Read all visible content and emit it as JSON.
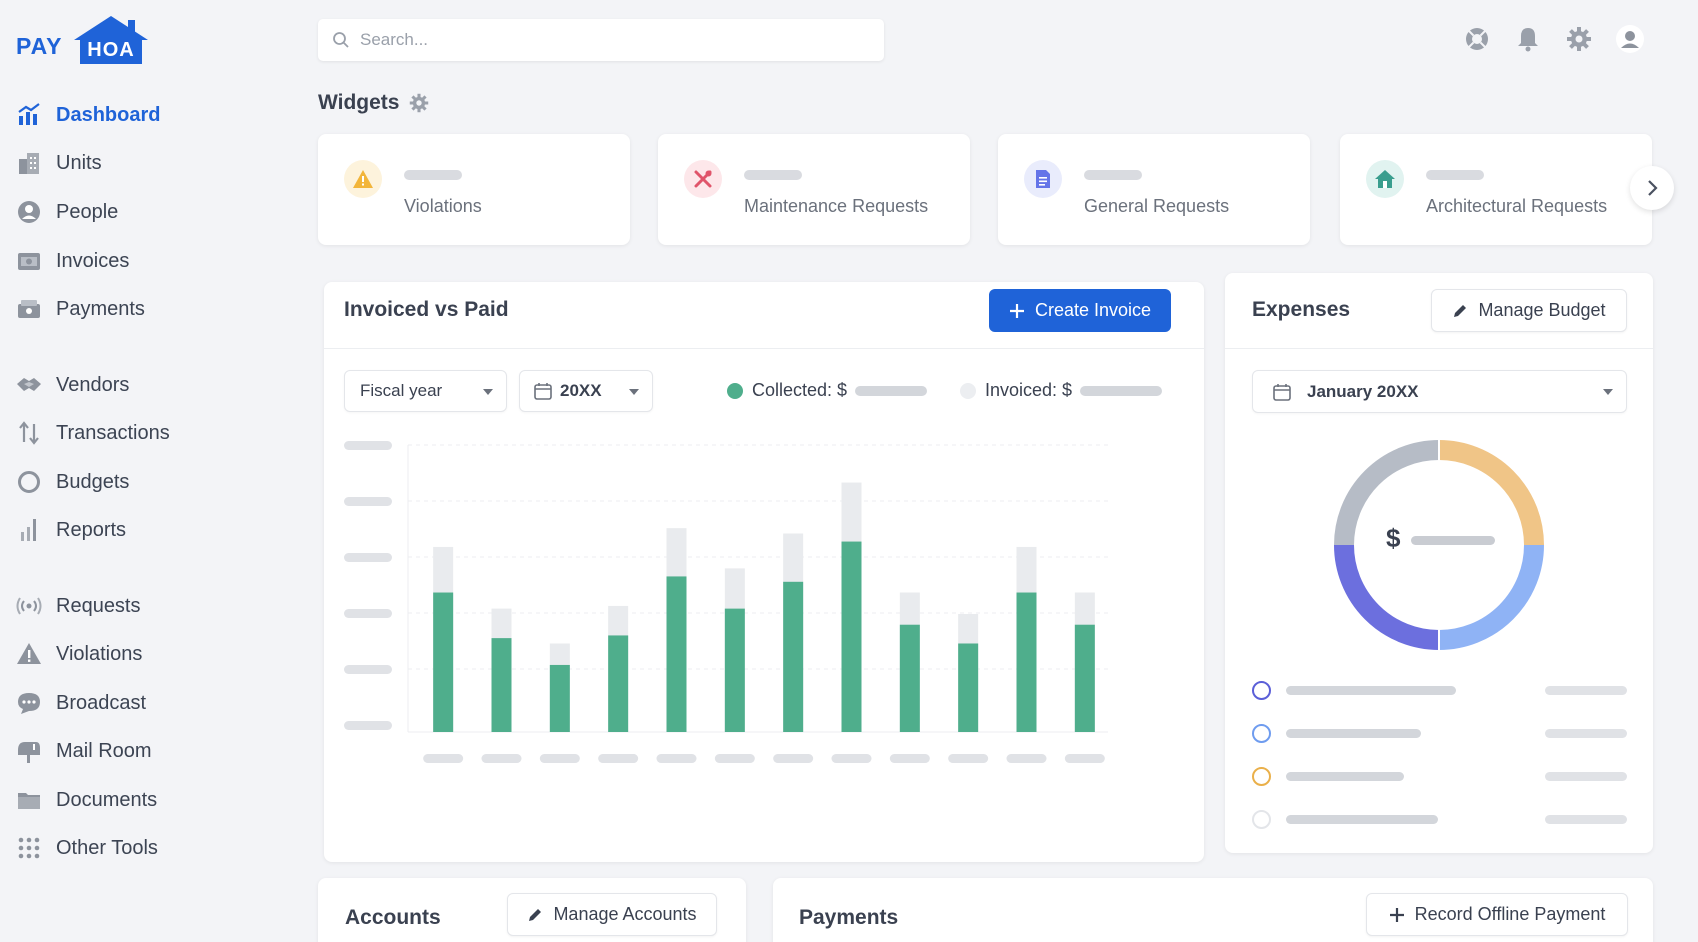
{
  "brand": {
    "pay": "PAY",
    "hoa": "HOA",
    "primary_color": "#1f63d8"
  },
  "sidebar": {
    "items": [
      {
        "label": "Dashboard",
        "icon": "dashboard-icon",
        "active": true
      },
      {
        "label": "Units",
        "icon": "building-icon"
      },
      {
        "label": "People",
        "icon": "person-icon"
      },
      {
        "label": "Invoices",
        "icon": "invoice-icon"
      },
      {
        "label": "Payments",
        "icon": "payments-icon"
      },
      {
        "label": "Vendors",
        "icon": "handshake-icon"
      },
      {
        "label": "Transactions",
        "icon": "transfer-arrows-icon"
      },
      {
        "label": "Budgets",
        "icon": "budget-ring-icon"
      },
      {
        "label": "Reports",
        "icon": "bar-chart-icon"
      },
      {
        "label": "Requests",
        "icon": "broadcast-signal-icon"
      },
      {
        "label": "Violations",
        "icon": "warning-icon"
      },
      {
        "label": "Broadcast",
        "icon": "chat-bubble-icon"
      },
      {
        "label": "Mail Room",
        "icon": "mailbox-icon"
      },
      {
        "label": "Documents",
        "icon": "folder-icon"
      },
      {
        "label": "Other Tools",
        "icon": "grid-dots-icon"
      }
    ]
  },
  "search": {
    "placeholder": "Search..."
  },
  "top_icons": [
    "help-lifebuoy-icon",
    "bell-icon",
    "gear-icon",
    "user-avatar-icon"
  ],
  "widgets": {
    "title": "Widgets",
    "cards": [
      {
        "label": "Violations",
        "icon": "warning-icon",
        "icon_color": "#f2b53a",
        "icon_bg": "#fdf3dc"
      },
      {
        "label": "Maintenance Requests",
        "icon": "tools-icon",
        "icon_color": "#e0546a",
        "icon_bg": "#fde7ea"
      },
      {
        "label": "General Requests",
        "icon": "document-icon",
        "icon_color": "#6474e8",
        "icon_bg": "#e9ecfc"
      },
      {
        "label": "Architectural Requests",
        "icon": "house-icon",
        "icon_color": "#3a9e8e",
        "icon_bg": "#e1f3f0"
      }
    ]
  },
  "invoiced_vs_paid": {
    "title": "Invoiced vs Paid",
    "create_button": "Create Invoice",
    "period_select": "Fiscal year",
    "year_select": "20XX",
    "legend_collected": "Collected: $",
    "legend_invoiced": "Invoiced: $",
    "collected_color": "#4fae8c",
    "invoiced_color": "#e9ebee"
  },
  "chart_data": {
    "type": "bar",
    "title": "Invoiced vs Paid",
    "categories": [
      "",
      "",
      "",
      "",
      "",
      "",
      "",
      "",
      "",
      "",
      "",
      ""
    ],
    "series": [
      {
        "name": "Collected: $",
        "values": [
          52,
          35,
          25,
          36,
          58,
          46,
          56,
          71,
          40,
          33,
          52,
          40
        ]
      },
      {
        "name": "Invoiced: $",
        "values": [
          69,
          46,
          33,
          47,
          76,
          61,
          74,
          93,
          52,
          44,
          69,
          52
        ]
      }
    ],
    "ylim": [
      0,
      107
    ],
    "stacked_overlay": true,
    "grid": true,
    "legend": "top"
  },
  "expenses": {
    "title": "Expenses",
    "manage_button": "Manage Budget",
    "month_select": "January 20XX",
    "donut_label": "$",
    "segments": [
      {
        "color": "#f0c587",
        "value": 25
      },
      {
        "color": "#8fb3f5",
        "value": 25
      },
      {
        "color": "#6c6fde",
        "value": 25
      },
      {
        "color": "#b6bcc6",
        "value": 25
      }
    ],
    "legend_colors": [
      "#5b5fd8",
      "#6f9cef",
      "#eab04a",
      "#e3e5e9"
    ]
  },
  "accounts": {
    "title": "Accounts",
    "manage_button": "Manage Accounts"
  },
  "payments_panel": {
    "title": "Payments",
    "record_button": "Record Offline Payment"
  }
}
